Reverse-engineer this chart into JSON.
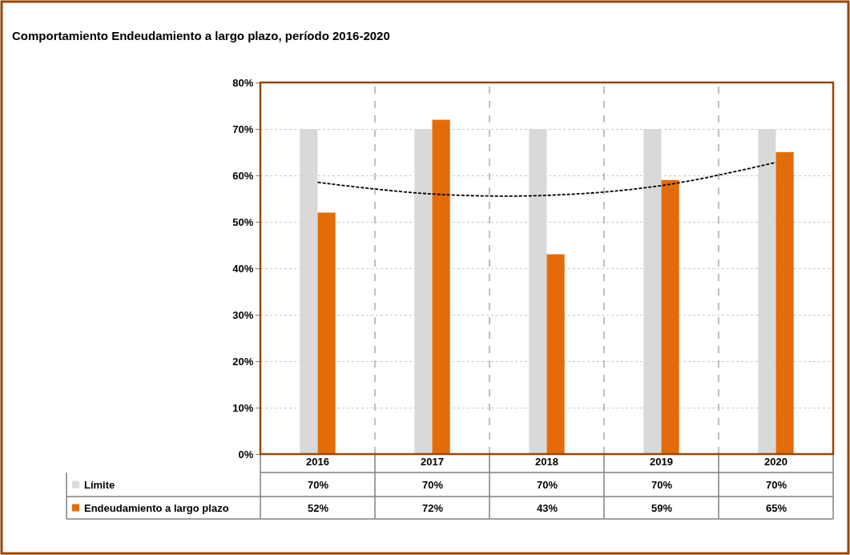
{
  "chart_data": {
    "type": "bar",
    "title": "Comportamiento Endeudamiento a largo plazo, período 2016-2020",
    "categories": [
      "2016",
      "2017",
      "2018",
      "2019",
      "2020"
    ],
    "series": [
      {
        "name": "Límite",
        "color": "#d9d9d9",
        "values": [
          70,
          70,
          70,
          70,
          70
        ],
        "value_labels": [
          "70%",
          "70%",
          "70%",
          "70%",
          "70%"
        ]
      },
      {
        "name": "Endeudamiento a largo plazo",
        "color": "#e36c0a",
        "values": [
          52,
          72,
          43,
          59,
          65
        ],
        "value_labels": [
          "52%",
          "72%",
          "43%",
          "59%",
          "65%"
        ]
      },
      {
        "type": "line",
        "color": "#000000",
        "line_style": "dashed",
        "values": [
          58.5,
          56,
          55.7,
          57.8,
          62.8
        ]
      }
    ],
    "ylim": [
      0,
      80
    ],
    "yticks": [
      {
        "value": 0,
        "label": "0%"
      },
      {
        "value": 10,
        "label": "10%"
      },
      {
        "value": 20,
        "label": "20%"
      },
      {
        "value": 30,
        "label": "30%"
      },
      {
        "value": 40,
        "label": "40%"
      },
      {
        "value": 50,
        "label": "50%"
      },
      {
        "value": 60,
        "label": "60%"
      },
      {
        "value": 70,
        "label": "70%"
      },
      {
        "value": 80,
        "label": "80%"
      }
    ],
    "grid": "y",
    "legend": "bottom left"
  }
}
